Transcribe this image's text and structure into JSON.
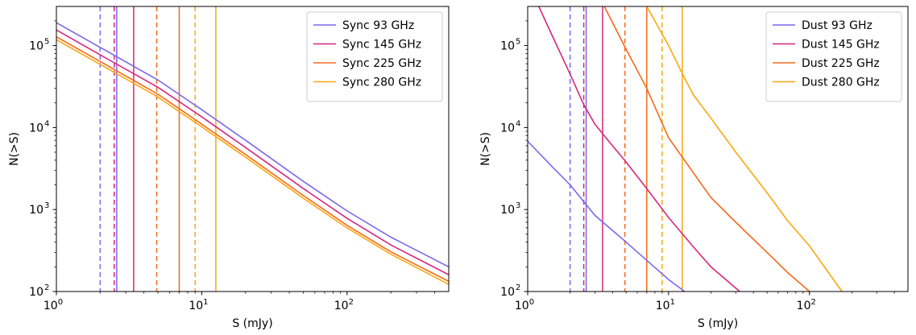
{
  "chart_data": [
    {
      "type": "line",
      "xlabel": "S (mJy)",
      "ylabel": "N(>S)",
      "xscale": "log",
      "yscale": "log",
      "xlim": [
        1,
        500
      ],
      "ylim": [
        100,
        300000
      ],
      "x_ticks": [
        {
          "label": "10",
          "exp": "0",
          "value": 1
        },
        {
          "label": "10",
          "exp": "1",
          "value": 10
        },
        {
          "label": "10",
          "exp": "2",
          "value": 100
        }
      ],
      "y_ticks": [
        {
          "label": "10",
          "exp": "2",
          "value": 100
        },
        {
          "label": "10",
          "exp": "3",
          "value": 1000
        },
        {
          "label": "10",
          "exp": "4",
          "value": 10000
        },
        {
          "label": "10",
          "exp": "5",
          "value": 100000
        }
      ],
      "legend_position": "top-right",
      "series": [
        {
          "name": "Sync 93 GHz",
          "color": "#7b68ee",
          "x": [
            1,
            2,
            5,
            10,
            20,
            50,
            100,
            200,
            500
          ],
          "y": [
            190000,
            95000,
            38000,
            16500,
            7000,
            2200,
            960,
            460,
            200
          ]
        },
        {
          "name": "Sync 145 GHz",
          "color": "#d6277e",
          "x": [
            1,
            2,
            5,
            10,
            20,
            50,
            100,
            200,
            500
          ],
          "y": [
            155000,
            77000,
            31000,
            13500,
            5700,
            1800,
            780,
            370,
            160
          ]
        },
        {
          "name": "Sync 225 GHz",
          "color": "#f26a1b",
          "x": [
            1,
            2,
            5,
            10,
            20,
            50,
            100,
            200,
            500
          ],
          "y": [
            128000,
            64000,
            25500,
            11000,
            4700,
            1480,
            640,
            305,
            133
          ]
        },
        {
          "name": "Sync 280 GHz",
          "color": "#f9a80f",
          "x": [
            1,
            2,
            5,
            10,
            20,
            50,
            100,
            200,
            500
          ],
          "y": [
            118000,
            59000,
            23500,
            10200,
            4350,
            1370,
            595,
            285,
            122
          ]
        }
      ],
      "vlines": [
        {
          "x": 2.0,
          "color": "#7b68ee",
          "style": "dashed"
        },
        {
          "x": 2.6,
          "color": "#7b68ee",
          "style": "solid"
        },
        {
          "x": 2.5,
          "color": "#d6277e",
          "style": "dashed"
        },
        {
          "x": 3.4,
          "color": "#d6277e",
          "style": "solid"
        },
        {
          "x": 4.9,
          "color": "#f26a1b",
          "style": "dashed"
        },
        {
          "x": 7.0,
          "color": "#f26a1b",
          "style": "solid"
        },
        {
          "x": 9.0,
          "color": "#f9a80f",
          "style": "dashed"
        },
        {
          "x": 12.5,
          "color": "#f9a80f",
          "style": "solid"
        }
      ]
    },
    {
      "type": "line",
      "xlabel": "S (mJy)",
      "ylabel": "N(>S)",
      "xscale": "log",
      "yscale": "log",
      "xlim": [
        1,
        500
      ],
      "ylim": [
        100,
        300000
      ],
      "x_ticks": [
        {
          "label": "10",
          "exp": "0",
          "value": 1
        },
        {
          "label": "10",
          "exp": "1",
          "value": 10
        },
        {
          "label": "10",
          "exp": "2",
          "value": 100
        }
      ],
      "y_ticks": [
        {
          "label": "10",
          "exp": "2",
          "value": 100
        },
        {
          "label": "10",
          "exp": "3",
          "value": 1000
        },
        {
          "label": "10",
          "exp": "4",
          "value": 10000
        },
        {
          "label": "10",
          "exp": "5",
          "value": 100000
        }
      ],
      "legend_position": "top-right",
      "series": [
        {
          "name": "Dust 93 GHz",
          "color": "#7b68ee",
          "x": [
            1,
            1.5,
            2,
            3,
            5,
            7,
            10,
            13
          ],
          "y": [
            6800,
            3300,
            2000,
            850,
            400,
            240,
            140,
            100
          ]
        },
        {
          "name": "Dust 145 GHz",
          "color": "#d6277e",
          "x": [
            1.2,
            1.5,
            2,
            2.5,
            3,
            4,
            5,
            7,
            10,
            15,
            20,
            32
          ],
          "y": [
            300000,
            130000,
            45000,
            19000,
            11000,
            6000,
            3800,
            1800,
            800,
            350,
            200,
            100
          ]
        },
        {
          "name": "Dust 225 GHz",
          "color": "#f26a1b",
          "x": [
            3.5,
            5,
            7,
            10,
            15,
            20,
            30,
            50,
            70,
            100
          ],
          "y": [
            300000,
            90000,
            30000,
            7500,
            2800,
            1400,
            700,
            300,
            170,
            100
          ]
        },
        {
          "name": "Dust 280 GHz",
          "color": "#f9a80f",
          "x": [
            7,
            10,
            13,
            15,
            20,
            30,
            50,
            70,
            100,
            170
          ],
          "y": [
            300000,
            100000,
            40000,
            25000,
            13000,
            5000,
            1600,
            730,
            360,
            100
          ]
        }
      ],
      "vlines": [
        {
          "x": 2.0,
          "color": "#7b68ee",
          "style": "dashed"
        },
        {
          "x": 2.6,
          "color": "#7b68ee",
          "style": "solid"
        },
        {
          "x": 2.5,
          "color": "#d6277e",
          "style": "dashed"
        },
        {
          "x": 3.4,
          "color": "#d6277e",
          "style": "solid"
        },
        {
          "x": 4.9,
          "color": "#f26a1b",
          "style": "dashed"
        },
        {
          "x": 7.0,
          "color": "#f26a1b",
          "style": "solid"
        },
        {
          "x": 9.0,
          "color": "#f9a80f",
          "style": "dashed"
        },
        {
          "x": 12.5,
          "color": "#f9a80f",
          "style": "solid"
        }
      ]
    }
  ]
}
